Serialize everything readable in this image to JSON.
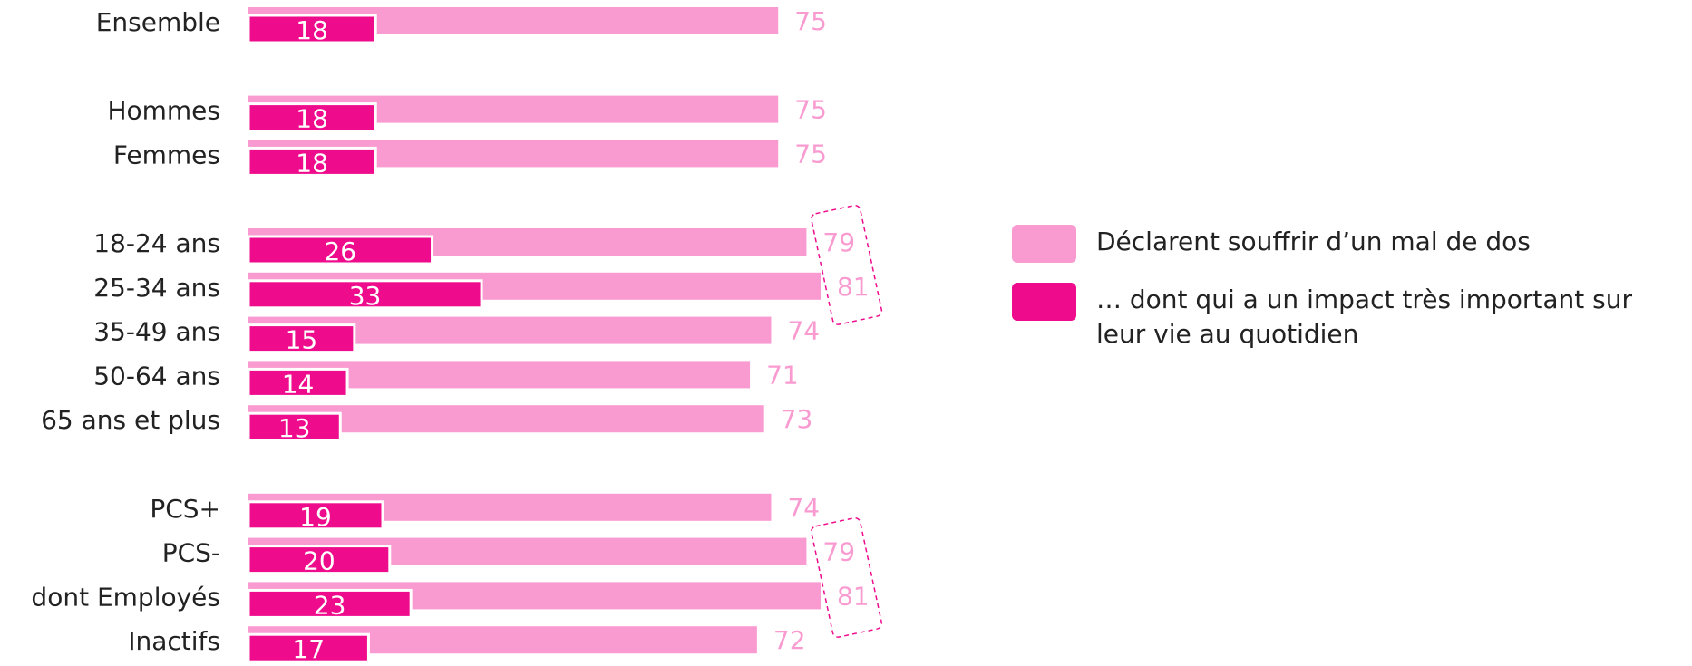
{
  "chart_data": {
    "type": "bar",
    "categories": [
      "Ensemble",
      null,
      "Hommes",
      "Femmes",
      null,
      "18-24 ans",
      "25-34 ans",
      "35-49 ans",
      "50-64 ans",
      "65 ans et plus",
      null,
      "PCS+",
      "PCS-",
      "dont Employés",
      "Inactifs"
    ],
    "series": [
      {
        "name": "Déclarent souffrir d’un mal de dos",
        "color": "#f99ad0",
        "values": [
          75,
          null,
          75,
          75,
          null,
          79,
          81,
          74,
          71,
          73,
          null,
          74,
          79,
          81,
          72
        ]
      },
      {
        "name": "… dont qui a un impact très important sur leur vie au quotidien",
        "color": "#ee0b8c",
        "values": [
          18,
          null,
          18,
          18,
          null,
          26,
          33,
          15,
          14,
          13,
          null,
          19,
          20,
          23,
          17
        ]
      }
    ]
  }
}
